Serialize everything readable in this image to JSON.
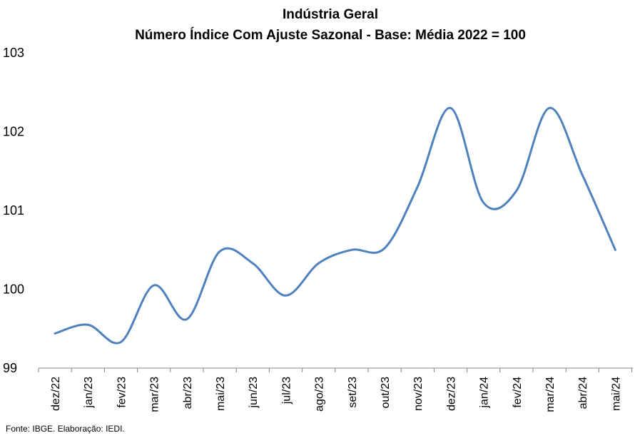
{
  "chart_data": {
    "type": "line",
    "title": "Indústria Geral",
    "subtitle": "Número Índice Com Ajuste Sazonal - Base: Média 2022 = 100",
    "xlabel": "",
    "ylabel": "",
    "ylim": [
      99,
      103
    ],
    "yticks": [
      "99",
      "100",
      "101",
      "102",
      "103"
    ],
    "grid": false,
    "line_color": "#4f81bd",
    "categories": [
      "dez/22",
      "jan/23",
      "fev/23",
      "mar/23",
      "abr/23",
      "mai/23",
      "jun/23",
      "jul/23",
      "ago/23",
      "set/23",
      "out/23",
      "nov/23",
      "dez/23",
      "jan/24",
      "fev/24",
      "mar/24",
      "abr/24",
      "mai/24"
    ],
    "values": [
      99.44,
      99.55,
      99.33,
      100.05,
      99.62,
      100.48,
      100.33,
      99.92,
      100.33,
      100.5,
      100.52,
      101.3,
      102.3,
      101.1,
      101.25,
      102.3,
      101.45,
      100.5
    ]
  },
  "source": "Fonte: IBGE. Elaboração: IEDI."
}
